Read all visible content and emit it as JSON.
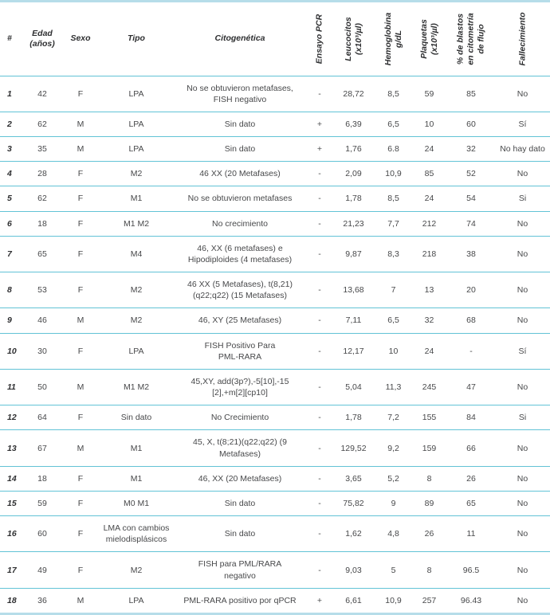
{
  "colors": {
    "row_separator": "#62c3d6",
    "outer_border": "#b6dde9",
    "text": "#47484a"
  },
  "table": {
    "columns": [
      {
        "key": "num",
        "label": "#",
        "rotated": false
      },
      {
        "key": "edad",
        "label": "Edad\n(años)",
        "rotated": false
      },
      {
        "key": "sexo",
        "label": "Sexo",
        "rotated": false
      },
      {
        "key": "tipo",
        "label": "Tipo",
        "rotated": false
      },
      {
        "key": "cito",
        "label": "Citogenética",
        "rotated": false
      },
      {
        "key": "pcr",
        "label": "Ensayo PCR",
        "rotated": true
      },
      {
        "key": "leu",
        "label": "Leucocitos\n(x10³/µl)",
        "rotated": true
      },
      {
        "key": "hgb",
        "label": "Hemoglobina\ng/dL",
        "rotated": true
      },
      {
        "key": "plq",
        "label": "Plaquetas\n(x10³/µl)",
        "rotated": true
      },
      {
        "key": "blastos",
        "label": "% de blastos\nen citometría\nde flujo",
        "rotated": true
      },
      {
        "key": "fall",
        "label": "Fallecimiento",
        "rotated": true
      }
    ],
    "rows": [
      [
        "1",
        "42",
        "F",
        "LPA",
        "No se obtuvieron metafases,\nFISH negativo",
        "-",
        "28,72",
        "8,5",
        "59",
        "85",
        "No"
      ],
      [
        "2",
        "62",
        "M",
        "LPA",
        "Sin dato",
        "+",
        "6,39",
        "6,5",
        "10",
        "60",
        "Sí"
      ],
      [
        "3",
        "35",
        "M",
        "LPA",
        "Sin dato",
        "+",
        "1,76",
        "6.8",
        "24",
        "32",
        "No hay dato"
      ],
      [
        "4",
        "28",
        "F",
        "M2",
        "46 XX (20 Metafases)",
        "-",
        "2,09",
        "10,9",
        "85",
        "52",
        "No"
      ],
      [
        "5",
        "62",
        "F",
        "M1",
        "No se obtuvieron metafases",
        "-",
        "1,78",
        "8,5",
        "24",
        "54",
        "Si"
      ],
      [
        "6",
        "18",
        "F",
        "M1 M2",
        "No crecimiento",
        "-",
        "21,23",
        "7,7",
        "212",
        "74",
        "No"
      ],
      [
        "7",
        "65",
        "F",
        "M4",
        "46, XX (6 metafases) e\nHipodiploides (4 metafases)",
        "-",
        "9,87",
        "8,3",
        "218",
        "38",
        "No"
      ],
      [
        "8",
        "53",
        "F",
        "M2",
        "46 XX (5 Metafases), t(8,21)\n(q22;q22) (15 Metafases)",
        "-",
        "13,68",
        "7",
        "13",
        "20",
        "No"
      ],
      [
        "9",
        "46",
        "M",
        "M2",
        "46, XY (25 Metafases)",
        "-",
        "7,11",
        "6,5",
        "32",
        "68",
        "No"
      ],
      [
        "10",
        "30",
        "F",
        "LPA",
        "FISH Positivo Para\nPML-RARA",
        "-",
        "12,17",
        "10",
        "24",
        "-",
        "Sí"
      ],
      [
        "11",
        "50",
        "M",
        "M1 M2",
        "45,XY, add(3p?),-5[10],-15\n[2],+m[2][cp10]",
        "-",
        "5,04",
        "11,3",
        "245",
        "47",
        "No"
      ],
      [
        "12",
        "64",
        "F",
        "Sin dato",
        "No Crecimiento",
        "-",
        "1,78",
        "7,2",
        "155",
        "84",
        "Si"
      ],
      [
        "13",
        "67",
        "M",
        "M1",
        "45, X, t(8;21)(q22;q22) (9\nMetafases)",
        "-",
        "129,52",
        "9,2",
        "159",
        "66",
        "No"
      ],
      [
        "14",
        "18",
        "F",
        "M1",
        "46, XX (20 Metafases)",
        "-",
        "3,65",
        "5,2",
        "8",
        "26",
        "No"
      ],
      [
        "15",
        "59",
        "F",
        "M0 M1",
        "Sin dato",
        "-",
        "75,82",
        "9",
        "89",
        "65",
        "No"
      ],
      [
        "16",
        "60",
        "F",
        "LMA con cambios\nmielodisplásicos",
        "Sin dato",
        "-",
        "1,62",
        "4,8",
        "26",
        "11",
        "No"
      ],
      [
        "17",
        "49",
        "F",
        "M2",
        "FISH para PML/RARA\nnegativo",
        "-",
        "9,03",
        "5",
        "8",
        "96.5",
        "No"
      ],
      [
        "18",
        "36",
        "M",
        "LPA",
        "PML-RARA positivo por qPCR",
        "+",
        "6,61",
        "10,9",
        "257",
        "96.43",
        "No"
      ]
    ]
  }
}
